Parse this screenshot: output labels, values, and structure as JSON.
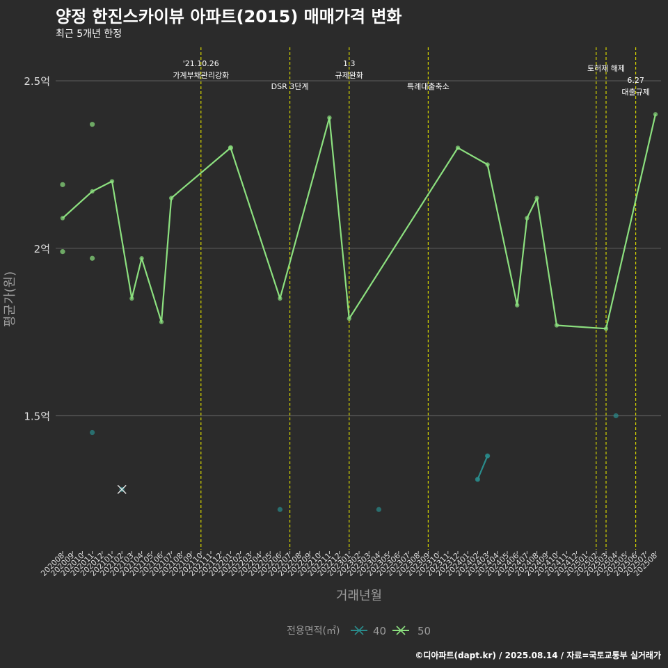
{
  "title": "양정 한진스카이뷰 아파트(2015) 매매가격 변화",
  "subtitle": "최근 5개년 한정",
  "caption": "©디아파트(dapt.kr) / 2025.08.14 / 자료=국토교통부 실거래가",
  "chart_data": {
    "type": "line",
    "xlabel": "거래년월",
    "ylabel": "평균가(원)",
    "ylim": [
      1.1,
      2.6
    ],
    "yticks": [
      {
        "value": 1.5,
        "label": "1.5억"
      },
      {
        "value": 2.0,
        "label": "2억"
      },
      {
        "value": 2.5,
        "label": "2.5억"
      }
    ],
    "x": [
      "202008",
      "202009",
      "202010",
      "202011",
      "202012",
      "202101",
      "202102",
      "202103",
      "202104",
      "202105",
      "202106",
      "202107",
      "202108",
      "202109",
      "202110",
      "202111",
      "202112",
      "202201",
      "202202",
      "202203",
      "202204",
      "202205",
      "202206",
      "202207",
      "202208",
      "202209",
      "202210",
      "202211",
      "202212",
      "202301",
      "202302",
      "202303",
      "202304",
      "202305",
      "202306",
      "202307",
      "202308",
      "202309",
      "202310",
      "202311",
      "202312",
      "202401",
      "202402",
      "202403",
      "202404",
      "202405",
      "202406",
      "202407",
      "202408",
      "202409",
      "202410",
      "202411",
      "202412",
      "202501",
      "202502",
      "202503",
      "202504",
      "202505",
      "202506",
      "202507",
      "202508"
    ],
    "legend": {
      "title": "전용면적(㎡)",
      "position": "bottom"
    },
    "series": [
      {
        "name": "40",
        "color": "#2a8c8c",
        "points": [
          {
            "x": "202011",
            "y": 1.45
          },
          {
            "x": "202102",
            "y": 1.28
          },
          {
            "x": "202206",
            "y": 1.22
          },
          {
            "x": "202304",
            "y": 1.22
          },
          {
            "x": "202402",
            "y": 1.31
          },
          {
            "x": "202403",
            "y": 1.38
          },
          {
            "x": "202504",
            "y": 1.5
          }
        ],
        "line": [
          {
            "x": "202402",
            "y": 1.31
          },
          {
            "x": "202403",
            "y": 1.38
          }
        ]
      },
      {
        "name": "50",
        "color": "#8ce07f",
        "points": [
          {
            "x": "202008",
            "y": 2.19
          },
          {
            "x": "202008",
            "y": 1.99
          },
          {
            "x": "202011",
            "y": 2.37
          },
          {
            "x": "202011",
            "y": 1.97
          },
          {
            "x": "202201",
            "y": 2.3
          }
        ],
        "line": [
          {
            "x": "202008",
            "y": 2.09
          },
          {
            "x": "202011",
            "y": 2.17
          },
          {
            "x": "202101",
            "y": 2.2
          },
          {
            "x": "202103",
            "y": 1.85
          },
          {
            "x": "202104",
            "y": 1.97
          },
          {
            "x": "202106",
            "y": 1.78
          },
          {
            "x": "202107",
            "y": 2.15
          },
          {
            "x": "202201",
            "y": 2.3
          },
          {
            "x": "202206",
            "y": 1.85
          },
          {
            "x": "202211",
            "y": 2.39
          },
          {
            "x": "202301",
            "y": 1.79
          },
          {
            "x": "202312",
            "y": 2.3
          },
          {
            "x": "202403",
            "y": 2.25
          },
          {
            "x": "202406",
            "y": 1.83
          },
          {
            "x": "202407",
            "y": 2.09
          },
          {
            "x": "202408",
            "y": 2.15
          },
          {
            "x": "202410",
            "y": 1.77
          },
          {
            "x": "202503",
            "y": 1.76
          },
          {
            "x": "202508",
            "y": 2.4
          }
        ]
      }
    ],
    "annotations": [
      {
        "x": "202110",
        "lines": [
          "'21.10.26",
          "가계부채관리강화"
        ],
        "level": 1
      },
      {
        "x": "202207",
        "lines": [
          "DSR 3단계"
        ],
        "level": 2
      },
      {
        "x": "202301",
        "lines": [
          "1.3",
          "규제완화"
        ],
        "level": 1
      },
      {
        "x": "202309",
        "lines": [
          "특례대출축소"
        ],
        "level": 2
      },
      {
        "x": "202502",
        "lines": [],
        "level": 1
      },
      {
        "x": "202503",
        "lines": [
          "토허제 해제"
        ],
        "level": 1
      },
      {
        "x": "202506",
        "lines": [
          "6.27",
          "대출규제"
        ],
        "level": 2
      }
    ]
  }
}
